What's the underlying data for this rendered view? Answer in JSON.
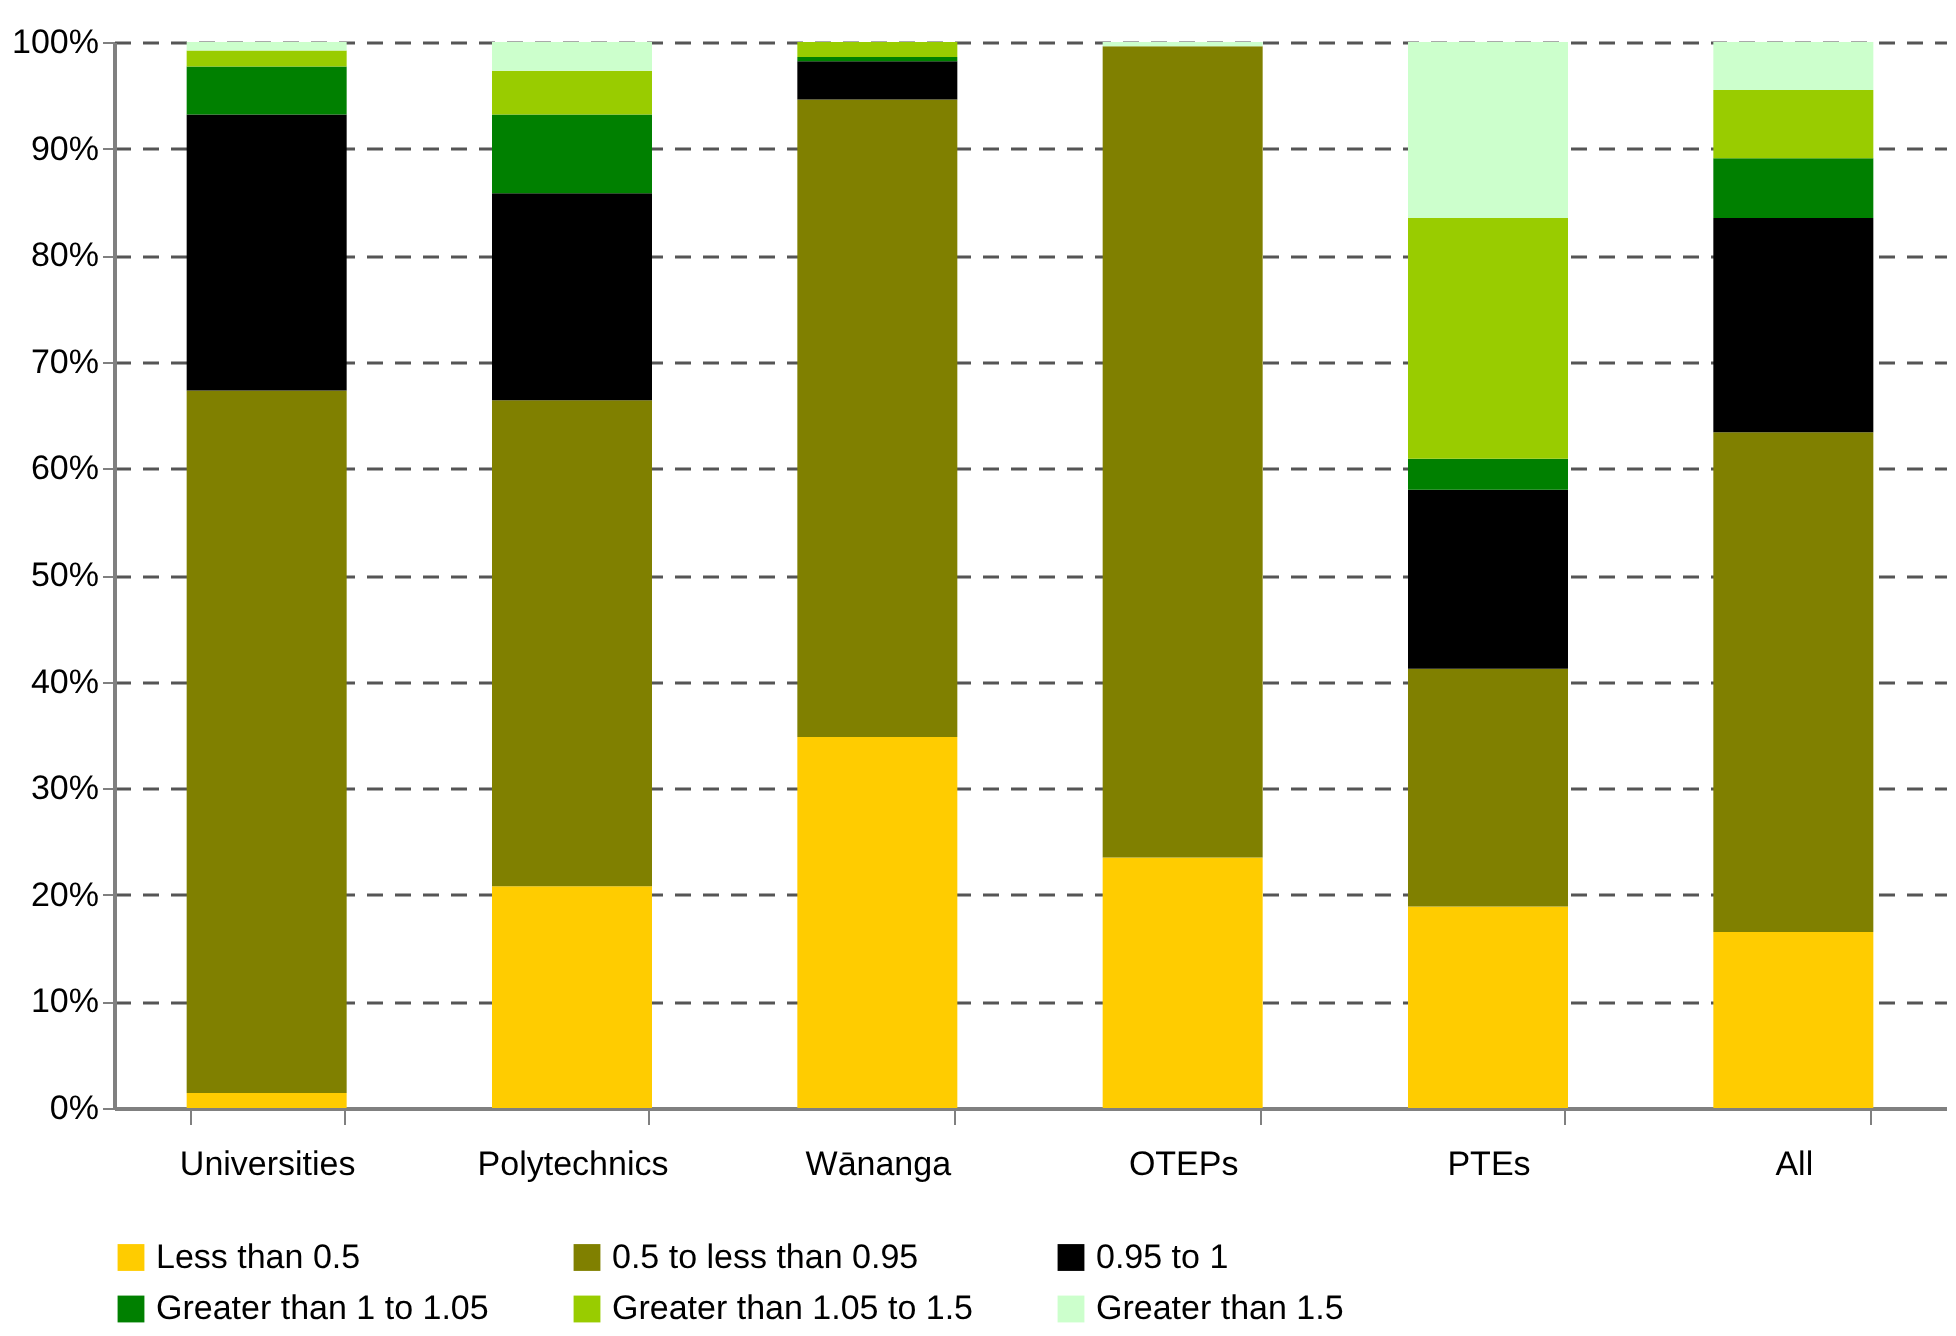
{
  "chart_data": {
    "type": "bar",
    "stacked": true,
    "categories": [
      "Universities",
      "Polytechnics",
      "Wānanga",
      "OTEPs",
      "PTEs",
      "All"
    ],
    "series": [
      {
        "name": "Less than 0.5",
        "color": "#ffcc00",
        "values": [
          1.4,
          20.8,
          34.8,
          23.5,
          18.9,
          16.5
        ]
      },
      {
        "name": "0.5 to less than 0.95",
        "color": "#808000",
        "values": [
          65.9,
          45.6,
          59.8,
          76.1,
          22.3,
          46.9
        ]
      },
      {
        "name": "0.95 to 1",
        "color": "#000000",
        "values": [
          25.9,
          19.4,
          3.6,
          0,
          16.8,
          20.1
        ]
      },
      {
        "name": "Greater than 1 to 1.05",
        "color": "#008000",
        "values": [
          4.5,
          7.4,
          0.4,
          0,
          2.9,
          5.6
        ]
      },
      {
        "name": "Greater than 1.05 to 1.5",
        "color": "#99cc00",
        "values": [
          1.5,
          4.1,
          1.4,
          0,
          22.6,
          6.4
        ]
      },
      {
        "name": "Greater than 1.5",
        "color": "#ccffcc",
        "values": [
          0.8,
          2.7,
          0,
          0.4,
          16.5,
          4.5
        ]
      }
    ],
    "ylim": [
      0,
      100
    ],
    "yticks": [
      {
        "value": 0,
        "label": "0%"
      },
      {
        "value": 10,
        "label": "10%"
      },
      {
        "value": 20,
        "label": "20%"
      },
      {
        "value": 30,
        "label": "30%"
      },
      {
        "value": 40,
        "label": "40%"
      },
      {
        "value": 50,
        "label": "50%"
      },
      {
        "value": 60,
        "label": "60%"
      },
      {
        "value": 70,
        "label": "70%"
      },
      {
        "value": 80,
        "label": "80%"
      },
      {
        "value": 90,
        "label": "90%"
      },
      {
        "value": 100,
        "label": "100%"
      }
    ],
    "grid": "y",
    "legend": "bottom"
  }
}
